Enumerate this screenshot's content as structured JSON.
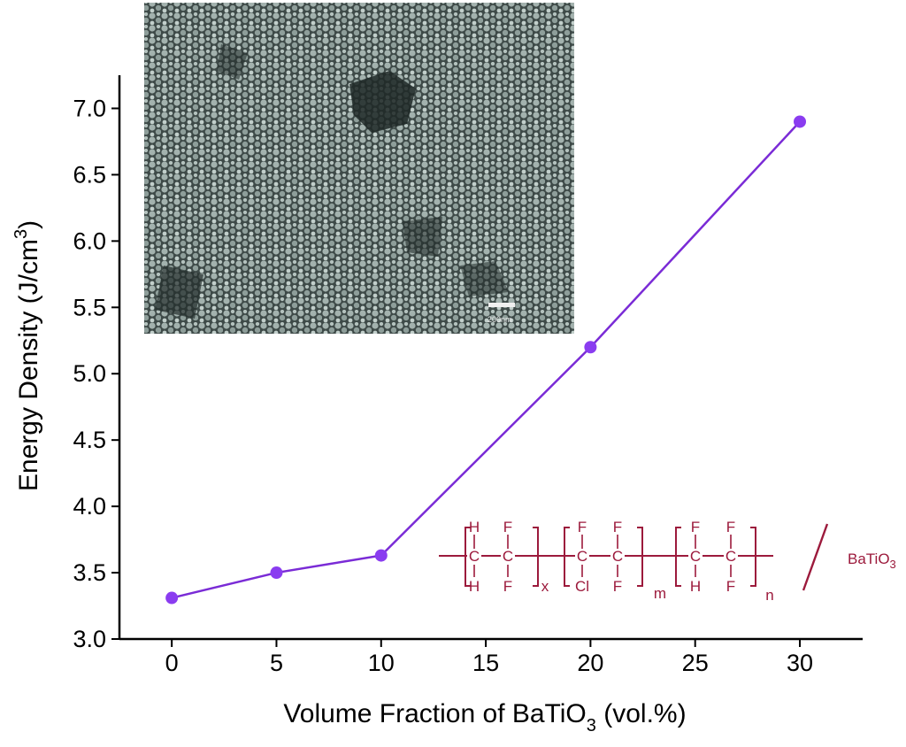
{
  "chart_data": {
    "type": "line",
    "xlabel_prefix": "Volume Fraction of BaTiO",
    "xlabel_sub": "3",
    "xlabel_suffix": " (vol.%)",
    "ylabel_main": "Energy Density (J/cm",
    "ylabel_sup": "3",
    "ylabel_close": ")",
    "xlim": [
      -2.5,
      33
    ],
    "ylim": [
      3.0,
      7.25
    ],
    "xticks": [
      0,
      5,
      10,
      15,
      20,
      25,
      30
    ],
    "yticks": [
      3.0,
      3.5,
      4.0,
      4.5,
      5.0,
      5.5,
      6.0,
      6.5,
      7.0
    ],
    "series": [
      {
        "x": [
          0,
          5,
          10,
          20,
          30
        ],
        "y": [
          3.31,
          3.5,
          3.63,
          5.2,
          6.9
        ]
      }
    ],
    "line_color": "#7a2bd6",
    "marker_color": "#8a3cf0"
  },
  "inset": {
    "scale_bar_text": "200nm"
  },
  "structure": {
    "units": [
      {
        "top": [
          "H",
          "F"
        ],
        "bottom": [
          "H",
          "F"
        ],
        "subscript": "x"
      },
      {
        "top": [
          "F",
          "F"
        ],
        "bottom": [
          "Cl",
          "F"
        ],
        "subscript": "m"
      },
      {
        "top": [
          "F",
          "F"
        ],
        "bottom": [
          "H",
          "F"
        ],
        "subscript": "n"
      }
    ],
    "filler_label": "BaTiO",
    "filler_sub": "3",
    "color": "#9c1a3c"
  }
}
